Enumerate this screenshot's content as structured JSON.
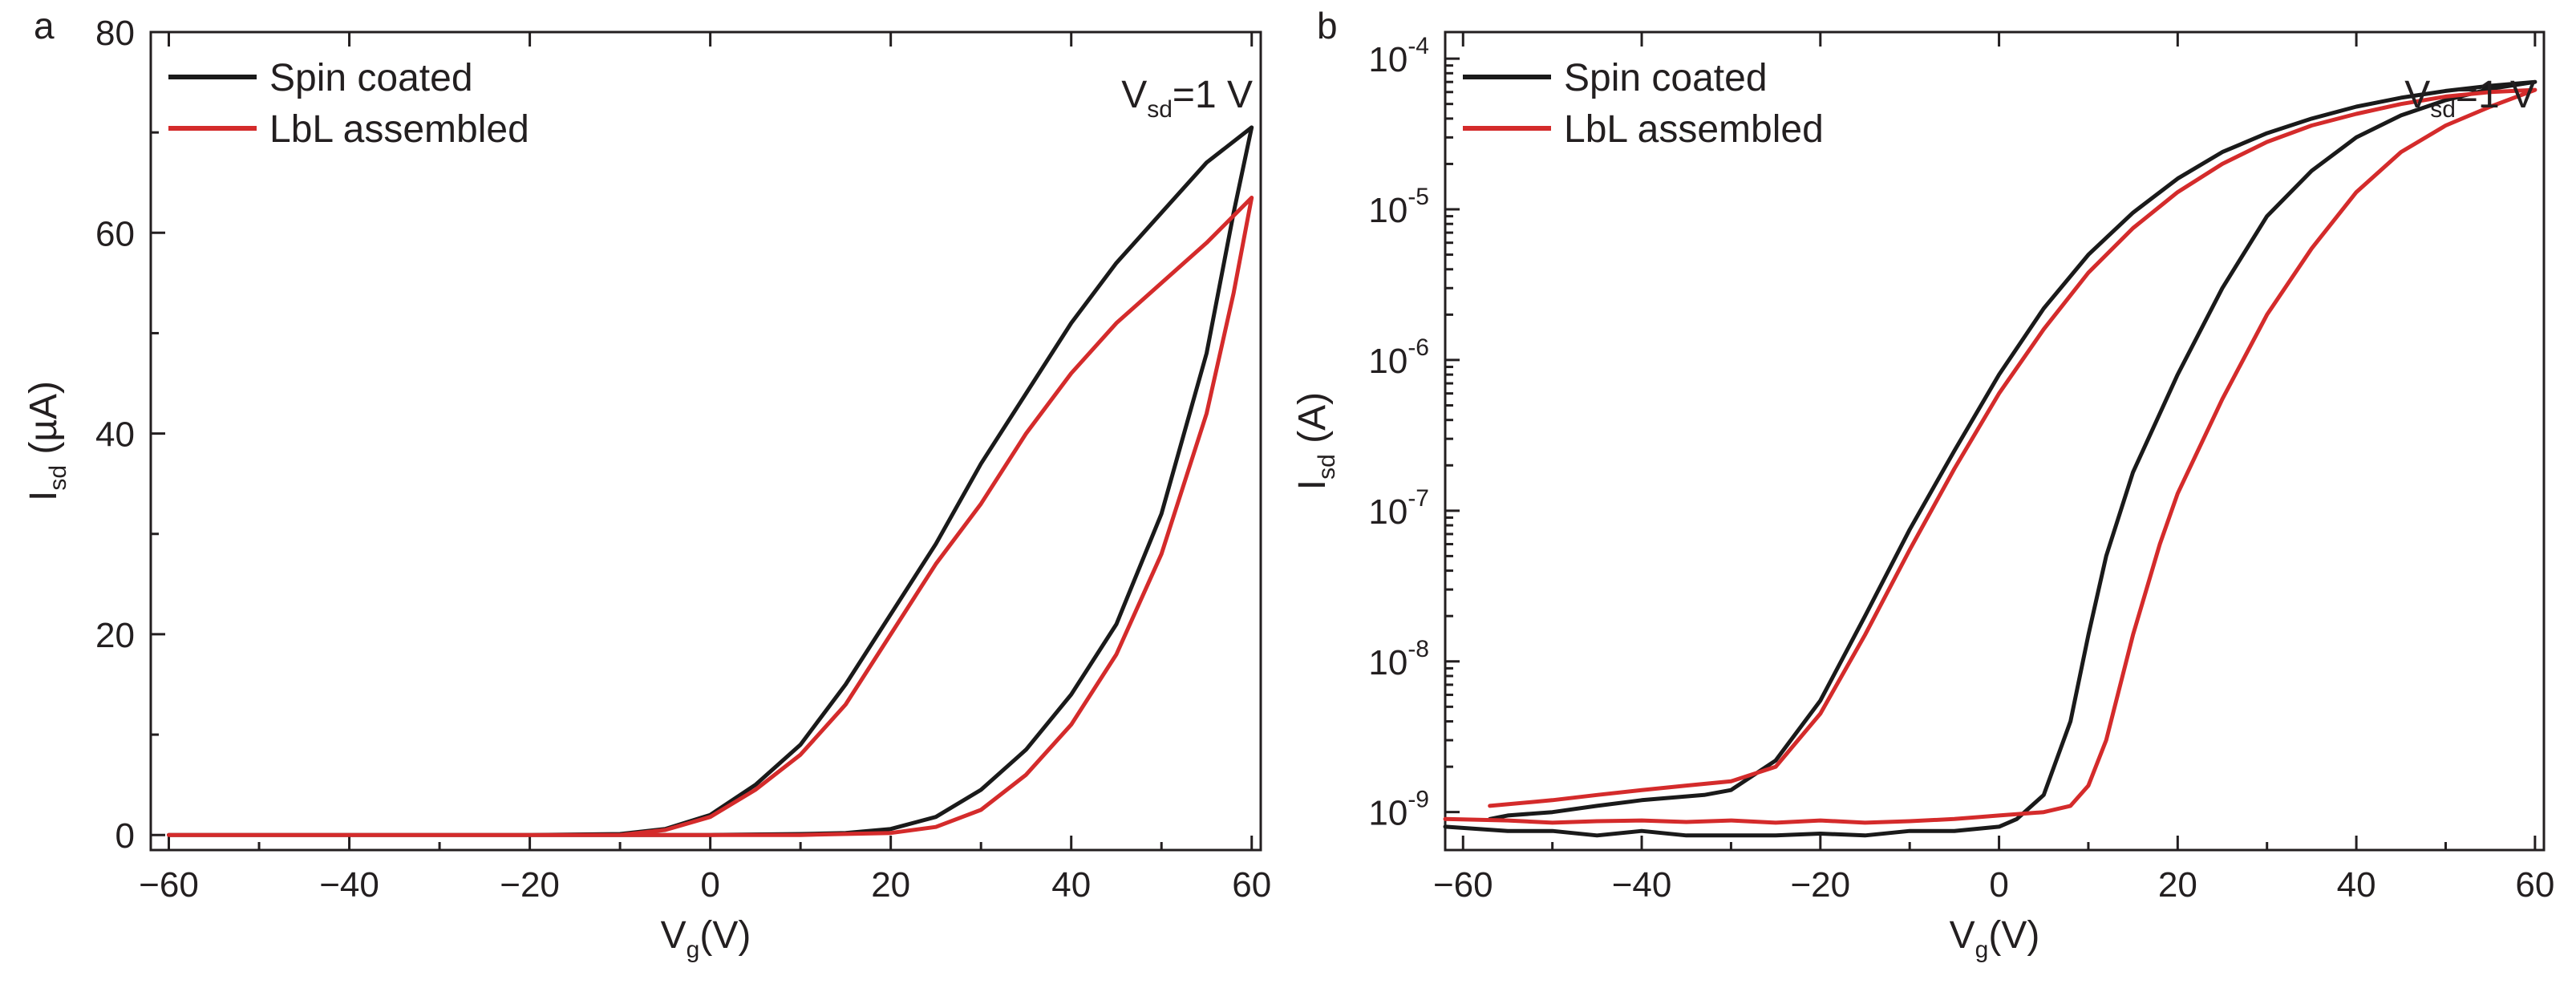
{
  "colors": {
    "spin": "#1a1a1a",
    "lbl": "#d42b2b",
    "axis": "#231f20"
  },
  "chart_data": [
    {
      "type": "line",
      "panel": "a",
      "title": "",
      "xlabel": {
        "main": "V",
        "sub": "g",
        "rest": "(V)"
      },
      "ylabel": {
        "main": "I",
        "sub": "sd",
        "rest": " (µA)"
      },
      "xlim": [
        -62,
        61
      ],
      "ylim": [
        -1.5,
        80
      ],
      "yscale": "linear",
      "xticks": [
        -60,
        -40,
        -20,
        0,
        20,
        40,
        60
      ],
      "xtick_labels": [
        "−60",
        "−40",
        "−20",
        "0",
        "20",
        "40",
        "60"
      ],
      "yticks": [
        0,
        20,
        40,
        60,
        80
      ],
      "ytick_labels": [
        "0",
        "20",
        "40",
        "60",
        "80"
      ],
      "legend": {
        "position": "top-left",
        "entries": [
          "Spin coated",
          "LbL assembled"
        ]
      },
      "annotation": {
        "main": "V",
        "sub": "sd",
        "rest": "=1 V"
      },
      "series": [
        {
          "name": "Spin coated",
          "color_key": "spin",
          "x": [
            -60,
            -40,
            -20,
            0,
            10,
            15,
            20,
            25,
            30,
            35,
            40,
            45,
            50,
            55,
            58,
            60,
            55,
            50,
            45,
            40,
            35,
            30,
            25,
            20,
            15,
            10,
            5,
            0,
            -5,
            -10,
            -20,
            -40,
            -60
          ],
          "y": [
            0,
            0,
            0,
            0,
            0.1,
            0.2,
            0.6,
            1.8,
            4.5,
            8.5,
            14,
            21,
            32,
            48,
            62,
            70.5,
            67,
            62,
            57,
            51,
            44,
            37,
            29,
            22,
            15,
            9,
            5,
            2,
            0.6,
            0.1,
            0,
            0,
            0
          ]
        },
        {
          "name": "LbL assembled",
          "color_key": "lbl",
          "x": [
            -60,
            -40,
            -20,
            0,
            10,
            20,
            25,
            30,
            35,
            40,
            45,
            50,
            55,
            58,
            60,
            55,
            50,
            45,
            40,
            35,
            30,
            25,
            20,
            15,
            10,
            5,
            0,
            -5,
            -10,
            -20,
            -40,
            -60
          ],
          "y": [
            0,
            0,
            0,
            0,
            0,
            0.2,
            0.8,
            2.5,
            6,
            11,
            18,
            28,
            42,
            54,
            63.5,
            59,
            55,
            51,
            46,
            40,
            33,
            27,
            20,
            13,
            8,
            4.5,
            1.8,
            0.5,
            0,
            0,
            0,
            0
          ]
        }
      ]
    },
    {
      "type": "line",
      "panel": "b",
      "title": "",
      "xlabel": {
        "main": "V",
        "sub": "g",
        "rest": "(V)"
      },
      "ylabel": {
        "main": "I",
        "sub": "sd",
        "rest": " (A)"
      },
      "xlim": [
        -62,
        61
      ],
      "ylim": [
        5.6e-10,
        0.00015
      ],
      "yscale": "log",
      "xticks": [
        -60,
        -40,
        -20,
        0,
        20,
        40,
        60
      ],
      "xtick_labels": [
        "−60",
        "−40",
        "−20",
        "0",
        "20",
        "40",
        "60"
      ],
      "yticks": [
        1e-09,
        1e-08,
        1e-07,
        1e-06,
        1e-05,
        0.0001
      ],
      "ytick_labels": [
        {
          "base": "10",
          "exp": "-9"
        },
        {
          "base": "10",
          "exp": "-8"
        },
        {
          "base": "10",
          "exp": "-7"
        },
        {
          "base": "10",
          "exp": "-6"
        },
        {
          "base": "10",
          "exp": "-5"
        },
        {
          "base": "10",
          "exp": "-4"
        }
      ],
      "legend": {
        "position": "top-left",
        "entries": [
          "Spin coated",
          "LbL assembled"
        ]
      },
      "annotation": {
        "main": "V",
        "sub": "sd",
        "rest": "=1 V"
      },
      "series": [
        {
          "name": "Spin coated",
          "color_key": "spin",
          "x": [
            -62,
            -55,
            -50,
            -45,
            -40,
            -35,
            -30,
            -25,
            -20,
            -15,
            -10,
            -5,
            0,
            2,
            5,
            8,
            10,
            12,
            15,
            20,
            25,
            30,
            35,
            40,
            45,
            50,
            55,
            60,
            55,
            50,
            45,
            40,
            35,
            30,
            25,
            20,
            15,
            10,
            5,
            0,
            -5,
            -10,
            -15,
            -20,
            -25,
            -30,
            -33,
            -40,
            -45,
            -50,
            -55,
            -57
          ],
          "y": [
            8e-10,
            7.5e-10,
            7.5e-10,
            7e-10,
            7.5e-10,
            7e-10,
            7e-10,
            7e-10,
            7.2e-10,
            7e-10,
            7.5e-10,
            7.5e-10,
            8e-10,
            9e-10,
            1.3e-09,
            4e-09,
            1.5e-08,
            5e-08,
            1.8e-07,
            8e-07,
            3e-06,
            9e-06,
            1.8e-05,
            3e-05,
            4.2e-05,
            5.3e-05,
            6.3e-05,
            7e-05,
            6.6e-05,
            6.1e-05,
            5.5e-05,
            4.8e-05,
            4e-05,
            3.2e-05,
            2.4e-05,
            1.6e-05,
            9.5e-06,
            5e-06,
            2.2e-06,
            8e-07,
            2.5e-07,
            7.5e-08,
            2e-08,
            5.5e-09,
            2.2e-09,
            1.4e-09,
            1.3e-09,
            1.2e-09,
            1.1e-09,
            1e-09,
            9.5e-10,
            9e-10
          ]
        },
        {
          "name": "LbL assembled",
          "color_key": "lbl",
          "x": [
            -62,
            -55,
            -50,
            -45,
            -40,
            -35,
            -30,
            -25,
            -20,
            -15,
            -10,
            -5,
            0,
            5,
            8,
            10,
            12,
            15,
            18,
            20,
            25,
            30,
            35,
            40,
            45,
            50,
            55,
            60,
            55,
            50,
            45,
            40,
            35,
            30,
            25,
            20,
            15,
            10,
            5,
            0,
            -5,
            -10,
            -15,
            -20,
            -25,
            -30,
            -35,
            -40,
            -45,
            -50,
            -57
          ],
          "y": [
            9e-10,
            8.8e-10,
            8.5e-10,
            8.7e-10,
            8.8e-10,
            8.6e-10,
            8.8e-10,
            8.5e-10,
            8.8e-10,
            8.5e-10,
            8.7e-10,
            9e-10,
            9.5e-10,
            1e-09,
            1.1e-09,
            1.5e-09,
            3e-09,
            1.5e-08,
            6e-08,
            1.3e-07,
            5.5e-07,
            2e-06,
            5.5e-06,
            1.3e-05,
            2.4e-05,
            3.6e-05,
            4.8e-05,
            6.2e-05,
            6e-05,
            5.6e-05,
            5e-05,
            4.3e-05,
            3.6e-05,
            2.8e-05,
            2e-05,
            1.3e-05,
            7.5e-06,
            3.8e-06,
            1.6e-06,
            6e-07,
            1.9e-07,
            5.5e-08,
            1.5e-08,
            4.5e-09,
            2e-09,
            1.6e-09,
            1.5e-09,
            1.4e-09,
            1.3e-09,
            1.2e-09,
            1.1e-09
          ]
        }
      ]
    }
  ]
}
